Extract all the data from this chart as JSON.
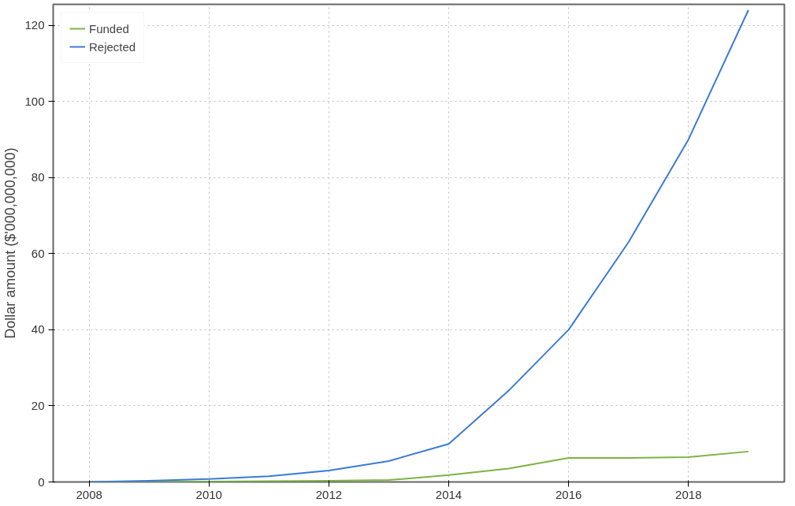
{
  "chart_data": {
    "type": "line",
    "ylabel": "Dollar amount ($'000,000,000)",
    "x": [
      2008,
      2009,
      2010,
      2011,
      2012,
      2013,
      2014,
      2015,
      2016,
      2017,
      2018,
      2019
    ],
    "xlim": [
      2007.4,
      2019.6
    ],
    "xticks": [
      2008,
      2010,
      2012,
      2014,
      2016,
      2018
    ],
    "ylim": [
      0,
      125.5
    ],
    "yticks": [
      0,
      20,
      40,
      60,
      80,
      100,
      120
    ],
    "series": [
      {
        "name": "Funded",
        "color": "#7cb342",
        "values": [
          0,
          0,
          0.1,
          0.2,
          0.3,
          0.5,
          1.8,
          3.5,
          6.3,
          6.3,
          6.5,
          8
        ]
      },
      {
        "name": "Rejected",
        "color": "#3a7bd5",
        "values": [
          0,
          0.3,
          0.8,
          1.5,
          3,
          5.5,
          10,
          24,
          40,
          63,
          90,
          124
        ]
      }
    ],
    "grid": true,
    "line_style": "solid",
    "legend": "top left"
  }
}
